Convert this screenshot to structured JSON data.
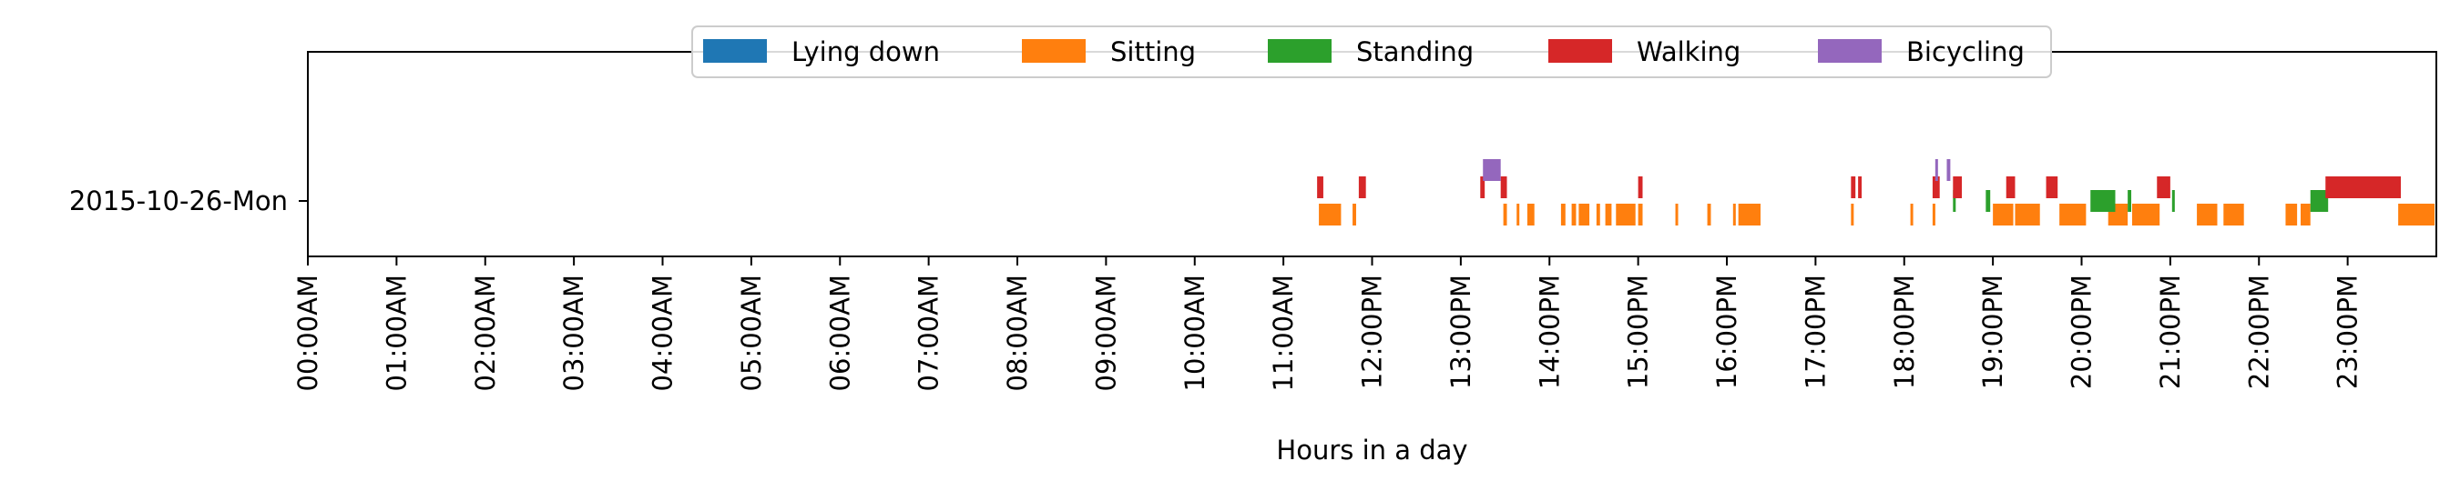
{
  "chart_data": {
    "type": "timeline",
    "xlabel": "Hours in a day",
    "x_ticks": [
      "00:00AM",
      "01:00AM",
      "02:00AM",
      "03:00AM",
      "04:00AM",
      "05:00AM",
      "06:00AM",
      "07:00AM",
      "08:00AM",
      "09:00AM",
      "10:00AM",
      "11:00AM",
      "12:00PM",
      "13:00PM",
      "14:00PM",
      "15:00PM",
      "16:00PM",
      "17:00PM",
      "18:00PM",
      "19:00PM",
      "20:00PM",
      "21:00PM",
      "22:00PM",
      "23:00PM"
    ],
    "xlim_hours": [
      0,
      24
    ],
    "y_categories": [
      "2015-10-26-Mon"
    ],
    "legend_position": "top-center",
    "series": [
      {
        "name": "Lying down",
        "color": "#1f77b4",
        "intervals": []
      },
      {
        "name": "Sitting",
        "color": "#ff7f0e",
        "intervals": [
          [
            11.4,
            11.65
          ],
          [
            11.78,
            11.82
          ],
          [
            13.48,
            13.52
          ],
          [
            13.63,
            13.66
          ],
          [
            13.75,
            13.83
          ],
          [
            14.13,
            14.18
          ],
          [
            14.25,
            14.3
          ],
          [
            14.33,
            14.45
          ],
          [
            14.53,
            14.57
          ],
          [
            14.63,
            14.7
          ],
          [
            14.75,
            14.97
          ],
          [
            15.0,
            15.05
          ],
          [
            15.42,
            15.45
          ],
          [
            15.78,
            15.82
          ],
          [
            16.07,
            16.1
          ],
          [
            16.13,
            16.38
          ],
          [
            17.4,
            17.43
          ],
          [
            18.07,
            18.1
          ],
          [
            18.32,
            18.35
          ],
          [
            19.0,
            19.23
          ],
          [
            19.25,
            19.53
          ],
          [
            19.75,
            20.05
          ],
          [
            20.3,
            20.52
          ],
          [
            20.57,
            20.88
          ],
          [
            21.3,
            21.53
          ],
          [
            21.6,
            21.83
          ],
          [
            22.3,
            22.43
          ],
          [
            22.47,
            22.58
          ],
          [
            23.57,
            23.98
          ]
        ]
      },
      {
        "name": "Standing",
        "color": "#2ca02c",
        "intervals": [
          [
            18.55,
            18.57
          ],
          [
            18.92,
            18.97
          ],
          [
            20.1,
            20.38
          ],
          [
            20.52,
            20.56
          ],
          [
            21.02,
            21.05
          ],
          [
            22.58,
            22.78
          ]
        ]
      },
      {
        "name": "Walking",
        "color": "#d62728",
        "intervals": [
          [
            11.38,
            11.45
          ],
          [
            11.85,
            11.93
          ],
          [
            13.22,
            13.27
          ],
          [
            13.45,
            13.52
          ],
          [
            15.0,
            15.05
          ],
          [
            17.4,
            17.45
          ],
          [
            17.48,
            17.52
          ],
          [
            18.32,
            18.4
          ],
          [
            18.55,
            18.65
          ],
          [
            19.15,
            19.25
          ],
          [
            19.6,
            19.73
          ],
          [
            20.85,
            21.0
          ],
          [
            22.75,
            23.6
          ]
        ]
      },
      {
        "name": "Bicycling",
        "color": "#9467bd",
        "intervals": [
          [
            13.25,
            13.45
          ],
          [
            18.35,
            18.38
          ],
          [
            18.48,
            18.52
          ]
        ]
      }
    ]
  }
}
